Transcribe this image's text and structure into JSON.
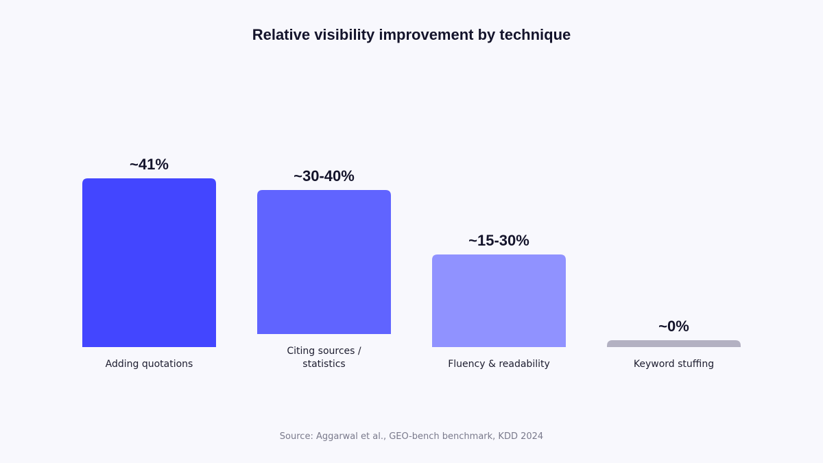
{
  "chart_data": {
    "type": "bar",
    "title": "Relative visibility improvement by technique",
    "xlabel": "",
    "ylabel": "",
    "categories": [
      "Adding quotations",
      "Citing sources / statistics",
      "Fluency & readability",
      "Keyword stuffing"
    ],
    "category_lines": [
      [
        "Adding quotations"
      ],
      [
        "Citing sources /",
        "statistics"
      ],
      [
        "Fluency & readability"
      ],
      [
        "Keyword stuffing"
      ]
    ],
    "values": [
      41,
      35,
      22.5,
      0
    ],
    "value_labels": [
      "~41%",
      "~30-40%",
      "~15-30%",
      "~0%"
    ],
    "colors": [
      "#4346ff",
      "#6064ff",
      "#9092ff",
      "#b3b1c2"
    ],
    "ylim": [
      0,
      41
    ],
    "grid": false
  },
  "source": "Source: Aggarwal et al., GEO-bench benchmark, KDD 2024"
}
